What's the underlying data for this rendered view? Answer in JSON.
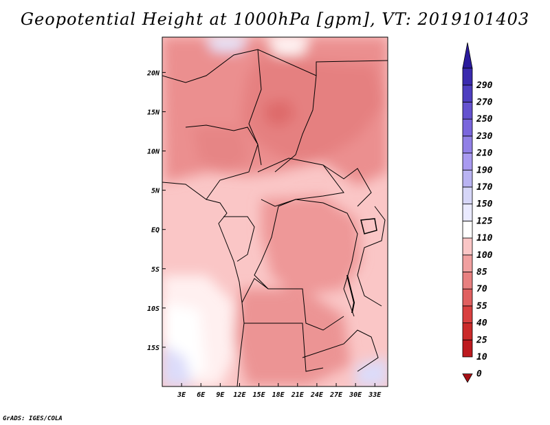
{
  "chart_data": {
    "type": "heatmap",
    "title": "Geopotential Height at 1000hPa [gpm], VT: 2019101403",
    "variable": "Geopotential Height at 1000hPa",
    "units": "gpm",
    "valid_time": "2019101403",
    "x_axis": {
      "ticks": [
        3,
        6,
        9,
        12,
        15,
        18,
        21,
        24,
        27,
        30,
        33
      ],
      "tick_labels": [
        "3E",
        "6E",
        "9E",
        "12E",
        "15E",
        "18E",
        "21E",
        "24E",
        "27E",
        "30E",
        "33E"
      ],
      "range": [
        0,
        35
      ]
    },
    "y_axis": {
      "ticks": [
        20,
        15,
        10,
        5,
        0,
        -5,
        -10,
        -15
      ],
      "tick_labels": [
        "20N",
        "15N",
        "10N",
        "5N",
        "EQ",
        "5S",
        "10S",
        "15S"
      ],
      "range": [
        -20,
        24.5
      ]
    },
    "colorbar": {
      "levels": [
        0,
        10,
        25,
        40,
        55,
        70,
        85,
        100,
        110,
        125,
        150,
        170,
        190,
        210,
        230,
        250,
        270,
        290
      ],
      "colors": [
        "#a50f15",
        "#bd1a1f",
        "#cb2a2a",
        "#d94040",
        "#e06060",
        "#e88080",
        "#f1a0a0",
        "#fac6c6",
        "#ffffff",
        "#eaeaff",
        "#d6d6f8",
        "#b9b3f2",
        "#a99af0",
        "#9180e6",
        "#7a66dc",
        "#6452cf",
        "#4e3ec0",
        "#3a2aae",
        "#2a1a9c"
      ],
      "extend": "both"
    },
    "approx_field_values": {
      "sahara_east_sudan_chad": 75,
      "central_chad_minimum": 58,
      "west_africa_nigeria": 80,
      "congo_basin": 88,
      "atlantic_south_west": 110,
      "north_edge_small_region": 126,
      "southeast_corner": 130
    }
  },
  "credit": "GrADS: IGES/COLA"
}
